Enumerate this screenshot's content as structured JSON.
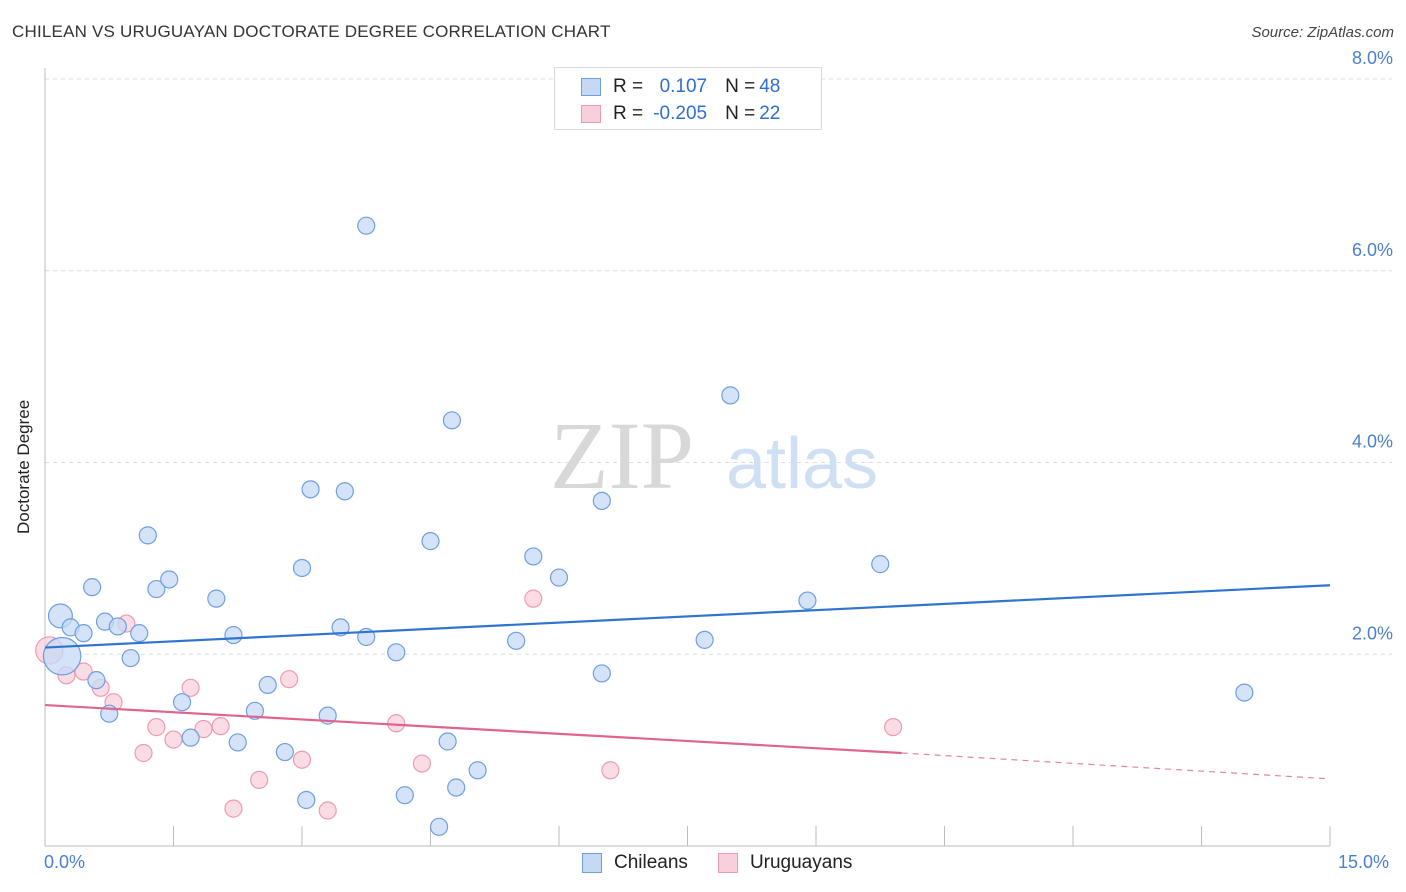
{
  "title": "CHILEAN VS URUGUAYAN DOCTORATE DEGREE CORRELATION CHART",
  "source": "Source: ZipAtlas.com",
  "watermark": {
    "zip": "ZIP",
    "atlas": "atlas"
  },
  "legend": {
    "rows": [
      {
        "r_label": "R = ",
        "r_value": "0.107",
        "n_label": "N = ",
        "n_value": "48",
        "color": "#7aa7e8"
      },
      {
        "r_label": "R = ",
        "r_value": "-0.205",
        "n_label": "N = ",
        "n_value": "22",
        "color": "#f0a0b8"
      }
    ]
  },
  "bottom_legend": {
    "series1": "Chileans",
    "series2": "Uruguayans"
  },
  "x_axis": {
    "min_label": "0.0%",
    "max_label": "15.0%"
  },
  "chart_data": {
    "type": "scatter",
    "title": "CHILEAN VS URUGUAYAN DOCTORATE DEGREE CORRELATION CHART",
    "xlabel": "",
    "ylabel": "Doctorate Degree",
    "xlim": [
      0,
      15
    ],
    "ylim": [
      0,
      8
    ],
    "y_ticks": [
      {
        "value": 2,
        "label": "2.0%"
      },
      {
        "value": 4,
        "label": "4.0%"
      },
      {
        "value": 6,
        "label": "6.0%"
      },
      {
        "value": 8,
        "label": "8.0%"
      }
    ],
    "x_tick_count": 11,
    "grid": true,
    "series": [
      {
        "name": "Chileans",
        "color": "#6f9fe0",
        "fill": "#c5d9f5",
        "trend_color": "#2f74d0",
        "trend": {
          "x0": 0.0,
          "y0": 2.07,
          "x1": 15.0,
          "y1": 2.72
        },
        "points": [
          [
            0.2,
            1.98,
            2.2
          ],
          [
            0.18,
            2.4,
            1.4
          ],
          [
            0.3,
            2.28,
            1
          ],
          [
            0.45,
            2.22,
            1
          ],
          [
            0.55,
            2.7,
            1
          ],
          [
            0.6,
            1.73,
            1
          ],
          [
            0.7,
            2.34,
            1
          ],
          [
            0.75,
            1.38,
            1
          ],
          [
            0.85,
            2.29,
            1
          ],
          [
            1.0,
            1.96,
            1
          ],
          [
            1.1,
            2.22,
            1
          ],
          [
            1.2,
            3.24,
            1
          ],
          [
            1.3,
            2.68,
            1
          ],
          [
            1.45,
            2.78,
            1
          ],
          [
            1.6,
            1.5,
            1
          ],
          [
            1.7,
            1.13,
            1
          ],
          [
            2.0,
            2.58,
            1
          ],
          [
            2.2,
            2.2,
            1
          ],
          [
            2.25,
            1.08,
            1
          ],
          [
            2.45,
            1.41,
            1
          ],
          [
            2.6,
            1.68,
            1
          ],
          [
            2.8,
            0.98,
            1
          ],
          [
            3.0,
            2.9,
            1
          ],
          [
            3.05,
            0.48,
            1
          ],
          [
            3.1,
            3.72,
            1
          ],
          [
            3.3,
            1.36,
            1
          ],
          [
            3.45,
            2.28,
            1
          ],
          [
            3.5,
            3.7,
            1
          ],
          [
            3.75,
            2.18,
            1
          ],
          [
            3.75,
            6.47,
            1
          ],
          [
            4.1,
            2.02,
            1
          ],
          [
            4.2,
            0.53,
            1
          ],
          [
            4.5,
            3.18,
            1
          ],
          [
            4.6,
            0.2,
            1
          ],
          [
            4.7,
            1.09,
            1
          ],
          [
            4.75,
            4.44,
            1
          ],
          [
            4.8,
            0.61,
            1
          ],
          [
            5.05,
            0.79,
            1
          ],
          [
            5.5,
            2.14,
            1
          ],
          [
            5.7,
            3.02,
            1
          ],
          [
            6.0,
            2.8,
            1
          ],
          [
            6.5,
            3.6,
            1
          ],
          [
            6.5,
            1.8,
            1
          ],
          [
            7.7,
            2.15,
            1
          ],
          [
            8.0,
            4.7,
            1
          ],
          [
            8.9,
            2.56,
            1
          ],
          [
            9.75,
            2.94,
            1
          ],
          [
            14.0,
            1.6,
            1
          ]
        ]
      },
      {
        "name": "Uruguayans",
        "color": "#ef9ab4",
        "fill": "#f8d0dc",
        "trend_color": "#e0648c",
        "trend": {
          "x0": 0.0,
          "y0": 1.47,
          "x1": 10.0,
          "y1": 0.97
        },
        "trend_extension": {
          "x0": 10.0,
          "y0": 0.97,
          "x1": 15.0,
          "y1": 0.7
        },
        "points": [
          [
            0.05,
            2.04,
            1.6
          ],
          [
            0.25,
            1.78,
            1
          ],
          [
            0.45,
            1.82,
            1
          ],
          [
            0.65,
            1.65,
            1
          ],
          [
            0.8,
            1.5,
            1
          ],
          [
            0.95,
            2.32,
            1
          ],
          [
            1.15,
            0.97,
            1
          ],
          [
            1.3,
            1.24,
            1
          ],
          [
            1.5,
            1.11,
            1
          ],
          [
            1.7,
            1.65,
            1
          ],
          [
            1.85,
            1.22,
            1
          ],
          [
            2.05,
            1.25,
            1
          ],
          [
            2.2,
            0.39,
            1
          ],
          [
            2.5,
            0.69,
            1
          ],
          [
            2.85,
            1.74,
            1
          ],
          [
            3.0,
            0.9,
            1
          ],
          [
            3.3,
            0.37,
            1
          ],
          [
            4.1,
            1.28,
            1
          ],
          [
            4.4,
            0.86,
            1
          ],
          [
            5.7,
            2.58,
            1
          ],
          [
            6.6,
            0.79,
            1
          ],
          [
            9.9,
            1.24,
            1
          ]
        ]
      }
    ]
  }
}
